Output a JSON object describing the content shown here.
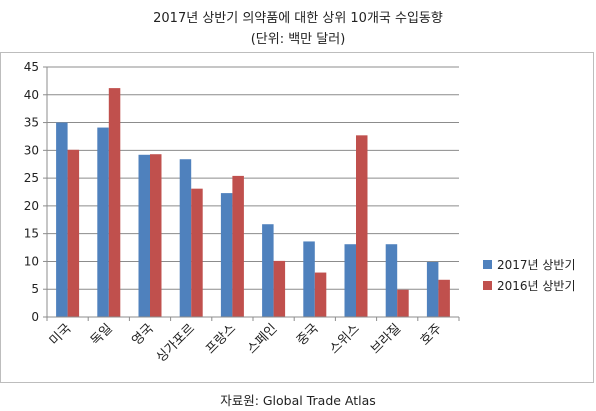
{
  "chart_data": {
    "type": "bar",
    "title": "2017년 상반기 의약품에 대한 상위 10개국 수입동향",
    "subtitle": "(단위: 백만 달러)",
    "categories": [
      "미국",
      "독일",
      "영국",
      "싱가포르",
      "프랑스",
      "스페인",
      "중국",
      "스위스",
      "브라질",
      "호주"
    ],
    "series": [
      {
        "name": "2017년 상반기",
        "color": "#4F81BD",
        "values": [
          35.0,
          34.1,
          29.2,
          28.4,
          22.3,
          16.7,
          13.6,
          13.1,
          13.1,
          9.9
        ]
      },
      {
        "name": "2016년 상반기",
        "color": "#C0504D",
        "values": [
          30.1,
          41.2,
          29.3,
          23.1,
          25.4,
          10.1,
          8.0,
          32.7,
          4.9,
          6.7
        ]
      }
    ],
    "yticks": [
      "0",
      "5",
      "10",
      "15",
      "20",
      "25",
      "30",
      "35",
      "40",
      "45"
    ],
    "ylim": [
      0,
      45
    ],
    "grid": true,
    "legend_position": "right",
    "source": "자료원: Global Trade Atlas"
  }
}
